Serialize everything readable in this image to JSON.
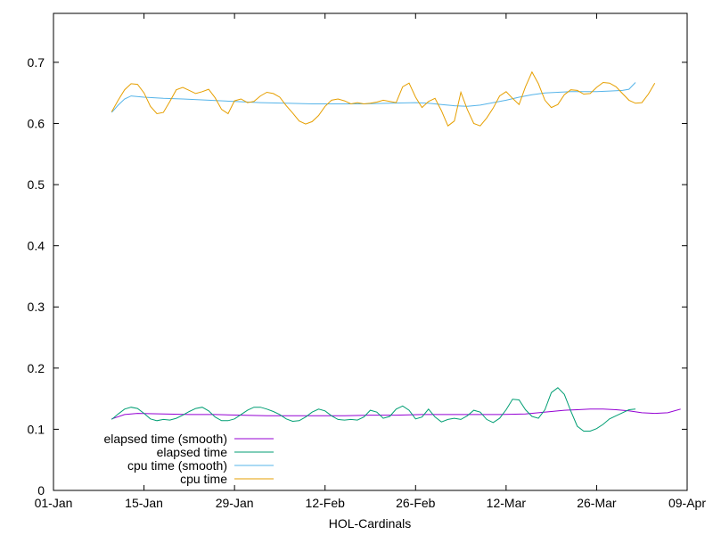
{
  "chart_data": {
    "type": "line",
    "title": "",
    "xlabel": "HOL-Cardinals",
    "ylabel": "",
    "x_ticks": [
      "01-Jan",
      "15-Jan",
      "29-Jan",
      "12-Feb",
      "26-Feb",
      "12-Mar",
      "26-Mar",
      "09-Apr"
    ],
    "y_ticks": [
      "0",
      "0.1",
      "0.2",
      "0.3",
      "0.4",
      "0.5",
      "0.6",
      "0.7"
    ],
    "xlim": [
      0,
      98
    ],
    "ylim": [
      0,
      0.78
    ],
    "grid": false,
    "legend_position": "bottom-left",
    "series": [
      {
        "name": "elapsed time (smooth)",
        "color": "#9400d3",
        "points": [
          [
            9,
            0.117
          ],
          [
            11,
            0.124
          ],
          [
            13,
            0.126
          ],
          [
            17,
            0.125
          ],
          [
            21,
            0.124
          ],
          [
            25,
            0.124
          ],
          [
            29,
            0.123
          ],
          [
            33,
            0.122
          ],
          [
            37,
            0.122
          ],
          [
            41,
            0.122
          ],
          [
            45,
            0.122
          ],
          [
            49,
            0.123
          ],
          [
            53,
            0.123
          ],
          [
            57,
            0.124
          ],
          [
            61,
            0.124
          ],
          [
            65,
            0.124
          ],
          [
            69,
            0.124
          ],
          [
            73,
            0.125
          ],
          [
            75,
            0.127
          ],
          [
            77,
            0.129
          ],
          [
            79,
            0.131
          ],
          [
            81,
            0.132
          ],
          [
            83,
            0.133
          ],
          [
            85,
            0.133
          ],
          [
            87,
            0.132
          ],
          [
            89,
            0.13
          ],
          [
            91,
            0.127
          ],
          [
            93,
            0.126
          ],
          [
            95,
            0.127
          ],
          [
            97,
            0.133
          ]
        ]
      },
      {
        "name": "elapsed time",
        "color": "#009e73",
        "points": [
          [
            9,
            0.116
          ],
          [
            10,
            0.125
          ],
          [
            11,
            0.133
          ],
          [
            12,
            0.136
          ],
          [
            13,
            0.134
          ],
          [
            14,
            0.126
          ],
          [
            15,
            0.117
          ],
          [
            16,
            0.114
          ],
          [
            17,
            0.116
          ],
          [
            18,
            0.115
          ],
          [
            19,
            0.118
          ],
          [
            20,
            0.123
          ],
          [
            21,
            0.129
          ],
          [
            22,
            0.134
          ],
          [
            23,
            0.136
          ],
          [
            24,
            0.13
          ],
          [
            25,
            0.12
          ],
          [
            26,
            0.114
          ],
          [
            27,
            0.114
          ],
          [
            28,
            0.117
          ],
          [
            29,
            0.124
          ],
          [
            30,
            0.131
          ],
          [
            31,
            0.136
          ],
          [
            32,
            0.136
          ],
          [
            33,
            0.133
          ],
          [
            34,
            0.129
          ],
          [
            35,
            0.124
          ],
          [
            36,
            0.117
          ],
          [
            37,
            0.113
          ],
          [
            38,
            0.114
          ],
          [
            39,
            0.12
          ],
          [
            40,
            0.128
          ],
          [
            41,
            0.133
          ],
          [
            42,
            0.13
          ],
          [
            43,
            0.122
          ],
          [
            44,
            0.116
          ],
          [
            45,
            0.115
          ],
          [
            46,
            0.116
          ],
          [
            47,
            0.115
          ],
          [
            48,
            0.12
          ],
          [
            49,
            0.131
          ],
          [
            50,
            0.128
          ],
          [
            51,
            0.118
          ],
          [
            52,
            0.121
          ],
          [
            53,
            0.133
          ],
          [
            54,
            0.138
          ],
          [
            55,
            0.131
          ],
          [
            56,
            0.117
          ],
          [
            57,
            0.12
          ],
          [
            58,
            0.133
          ],
          [
            59,
            0.12
          ],
          [
            60,
            0.112
          ],
          [
            61,
            0.116
          ],
          [
            62,
            0.118
          ],
          [
            63,
            0.116
          ],
          [
            64,
            0.122
          ],
          [
            65,
            0.131
          ],
          [
            66,
            0.128
          ],
          [
            67,
            0.116
          ],
          [
            68,
            0.111
          ],
          [
            69,
            0.118
          ],
          [
            70,
            0.132
          ],
          [
            71,
            0.149
          ],
          [
            72,
            0.148
          ],
          [
            73,
            0.132
          ],
          [
            74,
            0.121
          ],
          [
            75,
            0.118
          ],
          [
            76,
            0.132
          ],
          [
            77,
            0.16
          ],
          [
            78,
            0.168
          ],
          [
            79,
            0.157
          ],
          [
            80,
            0.13
          ],
          [
            81,
            0.105
          ],
          [
            82,
            0.097
          ],
          [
            83,
            0.097
          ],
          [
            84,
            0.101
          ],
          [
            85,
            0.108
          ],
          [
            86,
            0.117
          ],
          [
            87,
            0.122
          ],
          [
            88,
            0.127
          ],
          [
            89,
            0.132
          ],
          [
            90,
            0.133
          ]
        ]
      },
      {
        "name": "cpu time (smooth)",
        "color": "#56b4e9",
        "points": [
          [
            9,
            0.618
          ],
          [
            10,
            0.63
          ],
          [
            11,
            0.64
          ],
          [
            12,
            0.645
          ],
          [
            14,
            0.643
          ],
          [
            17,
            0.641
          ],
          [
            20,
            0.64
          ],
          [
            24,
            0.638
          ],
          [
            28,
            0.636
          ],
          [
            32,
            0.634
          ],
          [
            36,
            0.633
          ],
          [
            40,
            0.632
          ],
          [
            44,
            0.632
          ],
          [
            48,
            0.632
          ],
          [
            52,
            0.633
          ],
          [
            56,
            0.634
          ],
          [
            58,
            0.633
          ],
          [
            60,
            0.631
          ],
          [
            62,
            0.629
          ],
          [
            64,
            0.628
          ],
          [
            66,
            0.63
          ],
          [
            68,
            0.634
          ],
          [
            70,
            0.638
          ],
          [
            72,
            0.643
          ],
          [
            74,
            0.647
          ],
          [
            76,
            0.65
          ],
          [
            78,
            0.651
          ],
          [
            80,
            0.652
          ],
          [
            82,
            0.652
          ],
          [
            84,
            0.652
          ],
          [
            86,
            0.653
          ],
          [
            88,
            0.654
          ],
          [
            89,
            0.656
          ],
          [
            90,
            0.667
          ]
        ]
      },
      {
        "name": "cpu time",
        "color": "#e69f00",
        "points": [
          [
            9,
            0.619
          ],
          [
            10,
            0.638
          ],
          [
            11,
            0.655
          ],
          [
            12,
            0.665
          ],
          [
            13,
            0.664
          ],
          [
            14,
            0.65
          ],
          [
            15,
            0.628
          ],
          [
            16,
            0.616
          ],
          [
            17,
            0.618
          ],
          [
            18,
            0.636
          ],
          [
            19,
            0.655
          ],
          [
            20,
            0.659
          ],
          [
            21,
            0.654
          ],
          [
            22,
            0.649
          ],
          [
            23,
            0.652
          ],
          [
            24,
            0.656
          ],
          [
            25,
            0.642
          ],
          [
            26,
            0.623
          ],
          [
            27,
            0.616
          ],
          [
            28,
            0.637
          ],
          [
            29,
            0.64
          ],
          [
            30,
            0.634
          ],
          [
            31,
            0.636
          ],
          [
            32,
            0.645
          ],
          [
            33,
            0.651
          ],
          [
            34,
            0.649
          ],
          [
            35,
            0.643
          ],
          [
            36,
            0.629
          ],
          [
            37,
            0.617
          ],
          [
            38,
            0.604
          ],
          [
            39,
            0.599
          ],
          [
            40,
            0.603
          ],
          [
            41,
            0.613
          ],
          [
            42,
            0.628
          ],
          [
            43,
            0.638
          ],
          [
            44,
            0.64
          ],
          [
            45,
            0.637
          ],
          [
            46,
            0.632
          ],
          [
            47,
            0.634
          ],
          [
            48,
            0.632
          ],
          [
            49,
            0.633
          ],
          [
            50,
            0.635
          ],
          [
            51,
            0.638
          ],
          [
            52,
            0.636
          ],
          [
            53,
            0.634
          ],
          [
            54,
            0.66
          ],
          [
            55,
            0.666
          ],
          [
            56,
            0.643
          ],
          [
            57,
            0.626
          ],
          [
            58,
            0.636
          ],
          [
            59,
            0.641
          ],
          [
            60,
            0.621
          ],
          [
            61,
            0.596
          ],
          [
            62,
            0.604
          ],
          [
            63,
            0.651
          ],
          [
            64,
            0.623
          ],
          [
            65,
            0.6
          ],
          [
            66,
            0.596
          ],
          [
            67,
            0.609
          ],
          [
            68,
            0.625
          ],
          [
            69,
            0.645
          ],
          [
            70,
            0.652
          ],
          [
            71,
            0.641
          ],
          [
            72,
            0.631
          ],
          [
            73,
            0.66
          ],
          [
            74,
            0.684
          ],
          [
            75,
            0.665
          ],
          [
            76,
            0.638
          ],
          [
            77,
            0.626
          ],
          [
            78,
            0.631
          ],
          [
            79,
            0.647
          ],
          [
            80,
            0.655
          ],
          [
            81,
            0.654
          ],
          [
            82,
            0.648
          ],
          [
            83,
            0.649
          ],
          [
            84,
            0.659
          ],
          [
            85,
            0.667
          ],
          [
            86,
            0.666
          ],
          [
            87,
            0.66
          ],
          [
            88,
            0.649
          ],
          [
            89,
            0.638
          ],
          [
            90,
            0.633
          ],
          [
            91,
            0.634
          ],
          [
            92,
            0.648
          ],
          [
            93,
            0.666
          ]
        ]
      }
    ]
  }
}
